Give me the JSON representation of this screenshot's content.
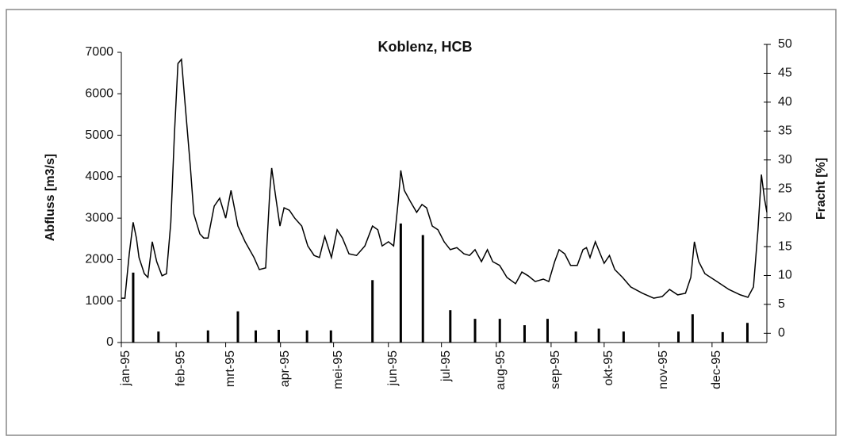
{
  "chart_data": {
    "type": "line_bar",
    "title": "Koblenz, HCB",
    "y_label": "Abfluss [m3/s]",
    "y2_label": "Fracht [%]",
    "xlim": [
      0,
      365
    ],
    "xticks": [
      {
        "value": 0,
        "label": "jan-95"
      },
      {
        "value": 31,
        "label": "feb-95"
      },
      {
        "value": 59,
        "label": "mrt-95"
      },
      {
        "value": 90,
        "label": "apr-95"
      },
      {
        "value": 120,
        "label": "mei-95"
      },
      {
        "value": 151,
        "label": "jun-95"
      },
      {
        "value": 181,
        "label": "jul-95"
      },
      {
        "value": 212,
        "label": "aug-95"
      },
      {
        "value": 243,
        "label": "sep-95"
      },
      {
        "value": 273,
        "label": "okt-95"
      },
      {
        "value": 304,
        "label": "nov-95"
      },
      {
        "value": 334,
        "label": "dec-95"
      }
    ],
    "ylim": [
      0,
      7000
    ],
    "yticks": [
      0,
      1000,
      2000,
      3000,
      4000,
      5000,
      6000,
      7000
    ],
    "y2lim": [
      -1.6,
      50
    ],
    "y2ticks": [
      0,
      5,
      10,
      15,
      20,
      25,
      30,
      35,
      40,
      45,
      50
    ],
    "series": [
      {
        "name": "Abfluss",
        "color": "#000000",
        "x": [
          0,
          2,
          4.5,
          6.7,
          8.5,
          10,
          13,
          15,
          17.5,
          20,
          23,
          25.5,
          28,
          30,
          32,
          34,
          36,
          39,
          41,
          44.4,
          46.6,
          49,
          52.5,
          55.6,
          59,
          62,
          65.9,
          70,
          75,
          78,
          81.6,
          84,
          85,
          87.4,
          89.7,
          92,
          95,
          98,
          102,
          105.4,
          109,
          112,
          115,
          118.8,
          122,
          125,
          128.7,
          133,
          137.7,
          142,
          145,
          147.5,
          151,
          154,
          156.5,
          158,
          160,
          163.7,
          167,
          170,
          172.6,
          175.8,
          179,
          182.5,
          186,
          189.7,
          193.7,
          196.9,
          200,
          203.6,
          207,
          210,
          213.9,
          218,
          222.9,
          226.5,
          230,
          234,
          238.6,
          241.7,
          245,
          247.5,
          250.7,
          254,
          257.8,
          261,
          263,
          265,
          268,
          270.4,
          273,
          276,
          279,
          283.4,
          288,
          294.6,
          301,
          305.8,
          310,
          314.6,
          319,
          322,
          324,
          326.5,
          330,
          336.8,
          343.5,
          350,
          354.3,
          357.4,
          360,
          361.9,
          363.6,
          365
        ],
        "values": [
          1070,
          1070,
          2140,
          2900,
          2520,
          2050,
          1660,
          1570,
          2430,
          1950,
          1610,
          1660,
          2900,
          5010,
          6730,
          6830,
          5780,
          4250,
          3100,
          2620,
          2520,
          2520,
          3290,
          3480,
          3000,
          3670,
          2810,
          2430,
          2050,
          1760,
          1800,
          3670,
          4210,
          3480,
          2810,
          3250,
          3190,
          3000,
          2810,
          2330,
          2100,
          2050,
          2560,
          2050,
          2720,
          2520,
          2140,
          2100,
          2330,
          2810,
          2720,
          2330,
          2430,
          2330,
          3380,
          4150,
          3670,
          3380,
          3140,
          3330,
          3250,
          2810,
          2720,
          2430,
          2240,
          2290,
          2140,
          2100,
          2240,
          1950,
          2240,
          1950,
          1860,
          1570,
          1420,
          1700,
          1610,
          1470,
          1530,
          1470,
          1950,
          2240,
          2140,
          1860,
          1860,
          2240,
          2290,
          2050,
          2430,
          2180,
          1910,
          2100,
          1760,
          1570,
          1340,
          1190,
          1070,
          1110,
          1280,
          1150,
          1190,
          1570,
          2430,
          1950,
          1660,
          1470,
          1280,
          1150,
          1090,
          1340,
          2720,
          4050,
          3480,
          3140
        ]
      },
      {
        "name": "Fracht",
        "color": "#000000",
        "axis": "y2",
        "x": [
          6.7,
          21,
          49,
          65.9,
          76,
          89,
          105,
          118.5,
          142,
          158,
          170.5,
          186,
          200,
          214,
          228,
          241,
          257,
          270,
          284,
          315,
          323,
          340,
          354
        ],
        "values": [
          10.5,
          0.3,
          0.5,
          3.8,
          0.5,
          0.6,
          0.5,
          0.5,
          9.2,
          19,
          17,
          4,
          2.5,
          2.5,
          1.4,
          2.5,
          0.3,
          0.8,
          0.3,
          0.3,
          3.3,
          0.2,
          1.8
        ]
      }
    ]
  }
}
